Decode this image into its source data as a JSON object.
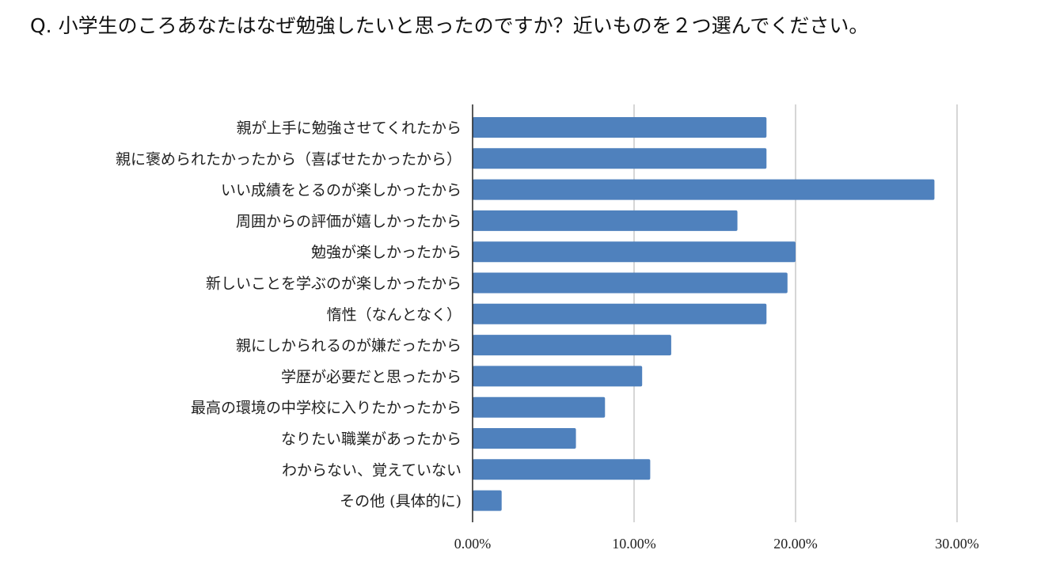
{
  "question": "Q. 小学生のころあなたはなぜ勉強したいと思ったのですか？近いものを２つ選んでください。",
  "chart_data": {
    "type": "bar",
    "orientation": "horizontal",
    "categories": [
      "親が上手に勉強させてくれたから",
      "親に褒められたかったから（喜ばせたかったから）",
      "いい成績をとるのが楽しかったから",
      "周囲からの評価が嬉しかったから",
      "勉強が楽しかったから",
      "新しいことを学ぶのが楽しかったから",
      "惰性（なんとなく）",
      "親にしかられるのが嫌だったから",
      "学歴が必要だと思ったから",
      "最高の環境の中学校に入りたかったから",
      "なりたい職業があったから",
      "わからない、覚えていない",
      "その他 (具体的に)"
    ],
    "values": [
      18.2,
      18.2,
      28.6,
      16.4,
      20.0,
      19.5,
      18.2,
      12.3,
      10.5,
      8.2,
      6.4,
      11.0,
      1.8
    ],
    "xlim": [
      0,
      30
    ],
    "ticks": [
      0,
      10,
      20,
      30
    ],
    "tick_labels": [
      "0.00%",
      "10.00%",
      "20.00%",
      "30.00%"
    ],
    "bar_color": "#4f81bd",
    "grid": true
  }
}
